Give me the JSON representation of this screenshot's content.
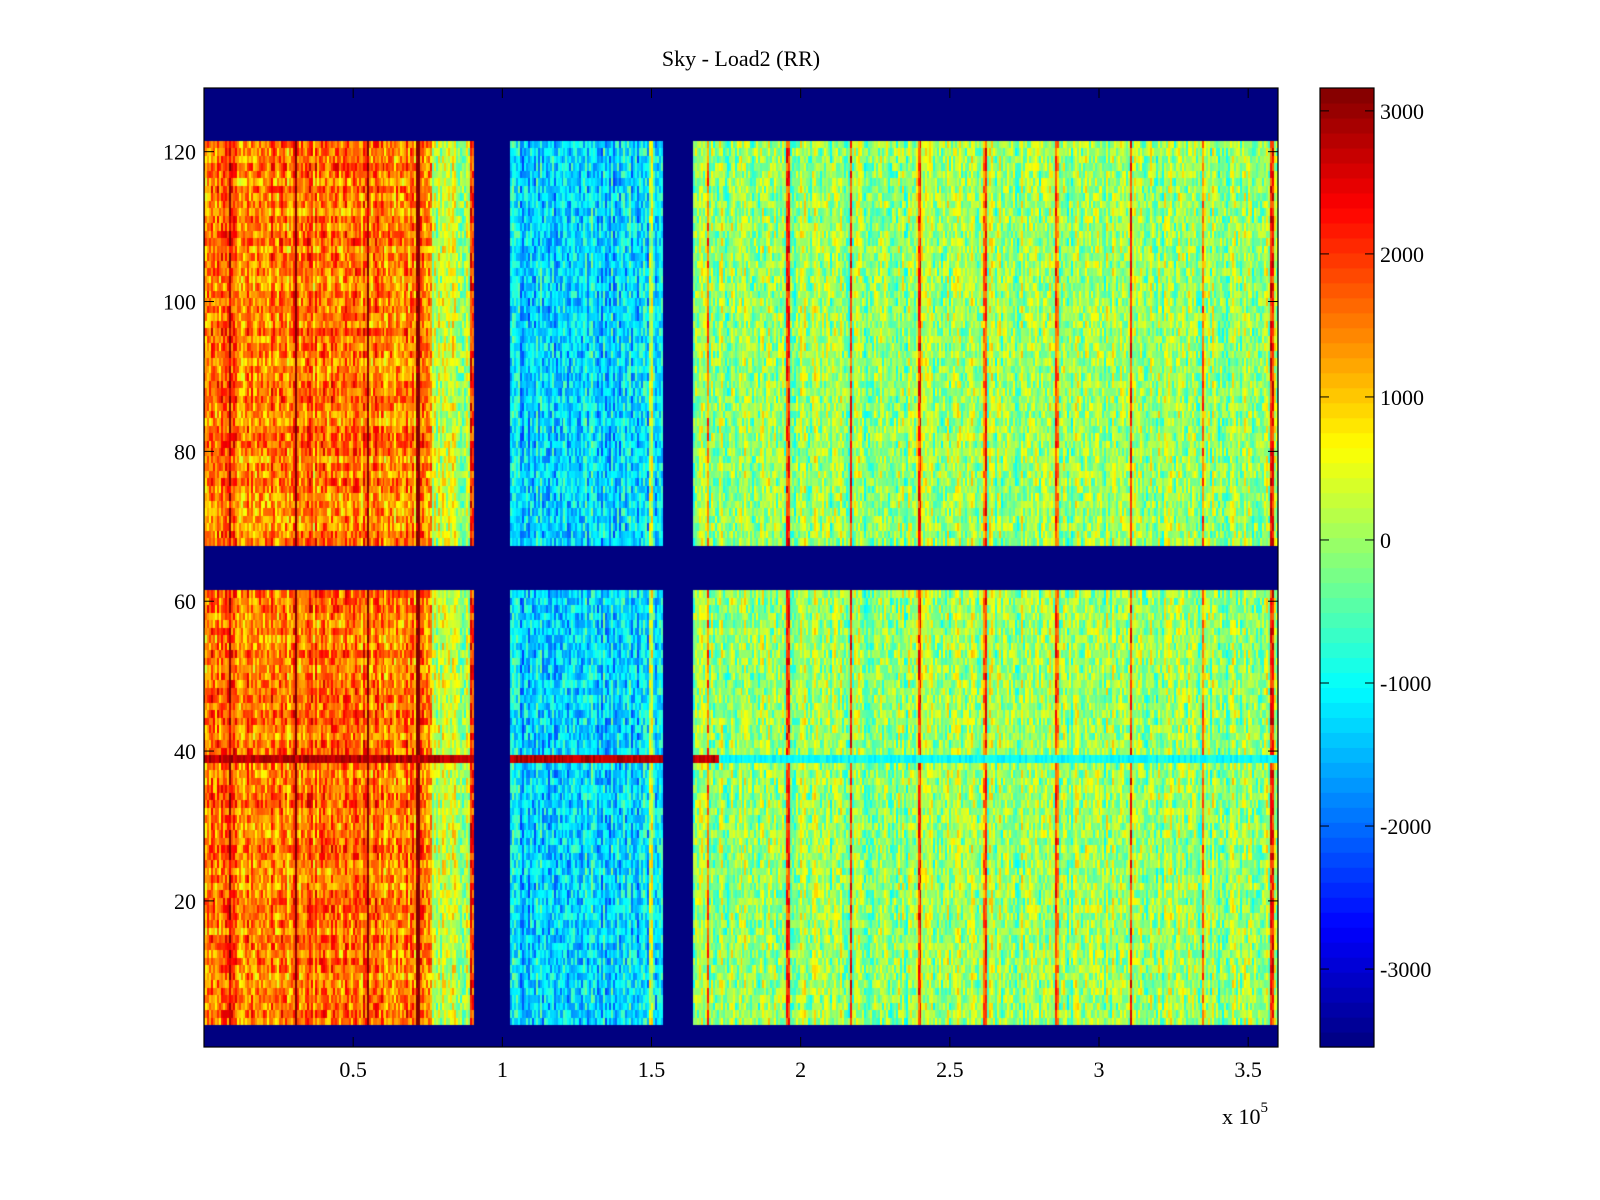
{
  "chart_data": {
    "type": "heatmap",
    "title": "Sky - Load2 (RR)",
    "xlabel": "",
    "ylabel": "",
    "x_multiplier_label": "x 10",
    "x_multiplier_exponent": "5",
    "xlim": [
      0,
      3.6
    ],
    "ylim": [
      0.5,
      128.5
    ],
    "xticks": [
      0.5,
      1,
      1.5,
      2,
      2.5,
      3,
      3.5
    ],
    "xtick_labels": [
      "0.5",
      "1",
      "1.5",
      "2",
      "2.5",
      "3",
      "3.5"
    ],
    "yticks": [
      20,
      40,
      60,
      80,
      100,
      120
    ],
    "ytick_labels": [
      "20",
      "40",
      "60",
      "80",
      "100",
      "120"
    ],
    "colormap": "jet",
    "clim": [
      -3545,
      3160
    ],
    "colorbar": {
      "ticks": [
        -3000,
        -2000,
        -1000,
        0,
        1000,
        2000,
        3000
      ],
      "tick_labels": [
        "-3000",
        "-2000",
        "-1000",
        "0",
        "1000",
        "2000",
        "3000"
      ]
    },
    "masked_row_ranges": [
      [
        0.5,
        3.5
      ],
      [
        61.5,
        67.5
      ],
      [
        121.5,
        128.5
      ]
    ],
    "masked_col_ranges": [
      [
        0.91,
        1.03
      ],
      [
        1.54,
        1.64
      ]
    ],
    "mask_value": -3545,
    "regions": [
      {
        "x_range": [
          0,
          0.77
        ],
        "mean": 1500
      },
      {
        "x_range": [
          0.77,
          0.91
        ],
        "mean": 200
      },
      {
        "x_range": [
          1.03,
          1.54
        ],
        "mean": -1200
      },
      {
        "x_range": [
          1.64,
          3.6
        ],
        "mean": 0
      }
    ],
    "highlight_row": {
      "y": 39,
      "left_mean": 2800,
      "right_mean": -1000,
      "split_x": 1.73
    },
    "stripe_columns": [
      0.09,
      0.31,
      0.55,
      0.72,
      0.9,
      1.5,
      1.69,
      1.96,
      2.17,
      2.4,
      2.62,
      2.86,
      3.11,
      3.35,
      3.58
    ]
  }
}
